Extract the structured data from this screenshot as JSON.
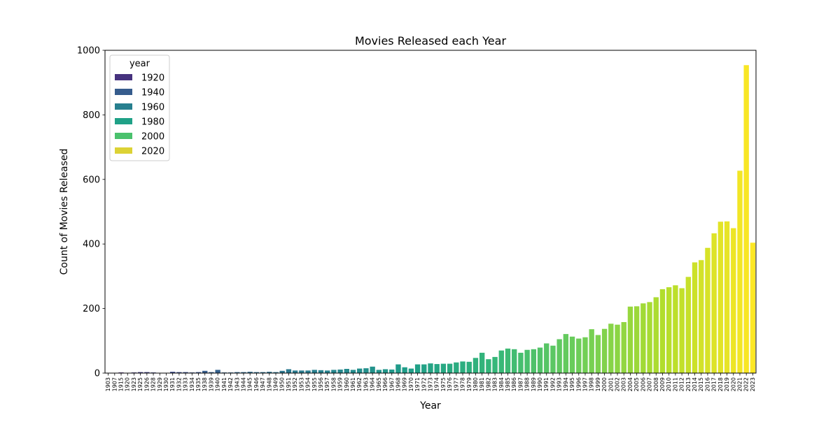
{
  "chart_data": {
    "type": "bar",
    "title": "Movies Released each Year",
    "xlabel": "Year",
    "ylabel": "Count of Movies Released",
    "ylim": [
      0,
      1000
    ],
    "yticks": [
      0,
      200,
      400,
      600,
      800,
      1000
    ],
    "grid": false,
    "legend": {
      "title": "year",
      "placement": "top-left",
      "entries": [
        {
          "label": "1920",
          "color": "#46327e"
        },
        {
          "label": "1940",
          "color": "#365c8d"
        },
        {
          "label": "1960",
          "color": "#277f8e"
        },
        {
          "label": "1980",
          "color": "#1fa187"
        },
        {
          "label": "2000",
          "color": "#4ac16d"
        },
        {
          "label": "2020",
          "color": "#dcd235"
        }
      ]
    },
    "colorscale": {
      "name": "viridis",
      "min_year": 1903,
      "max_year": 2023,
      "stops": [
        "#440154",
        "#482878",
        "#3e4989",
        "#31688e",
        "#26828e",
        "#1f9e89",
        "#35b779",
        "#6ece58",
        "#b5de2b",
        "#fde725"
      ]
    },
    "categories": [
      "1903",
      "1907",
      "1915",
      "1920",
      "1923",
      "1925",
      "1926",
      "1928",
      "1929",
      "1930",
      "1931",
      "1932",
      "1933",
      "1934",
      "1935",
      "1938",
      "1939",
      "1940",
      "1941",
      "1942",
      "1943",
      "1944",
      "1945",
      "1946",
      "1947",
      "1948",
      "1949",
      "1950",
      "1951",
      "1952",
      "1953",
      "1954",
      "1955",
      "1956",
      "1957",
      "1958",
      "1959",
      "1960",
      "1961",
      "1962",
      "1963",
      "1964",
      "1965",
      "1966",
      "1967",
      "1968",
      "1969",
      "1970",
      "1971",
      "1972",
      "1973",
      "1974",
      "1975",
      "1976",
      "1977",
      "1978",
      "1979",
      "1980",
      "1981",
      "1982",
      "1983",
      "1984",
      "1985",
      "1986",
      "1987",
      "1988",
      "1989",
      "1990",
      "1991",
      "1992",
      "1993",
      "1994",
      "1995",
      "1996",
      "1997",
      "1998",
      "1999",
      "2000",
      "2001",
      "2002",
      "2003",
      "2004",
      "2005",
      "2006",
      "2007",
      "2008",
      "2009",
      "2010",
      "2011",
      "2012",
      "2013",
      "2014",
      "2015",
      "2016",
      "2017",
      "2018",
      "2019",
      "2020",
      "2021",
      "2022",
      "2023"
    ],
    "values": [
      1,
      1,
      2,
      1,
      2,
      3,
      3,
      2,
      1,
      1,
      4,
      3,
      3,
      2,
      3,
      7,
      3,
      10,
      2,
      2,
      3,
      3,
      4,
      3,
      3,
      4,
      3,
      7,
      12,
      8,
      8,
      8,
      10,
      9,
      8,
      10,
      11,
      13,
      10,
      14,
      15,
      20,
      10,
      12,
      11,
      27,
      18,
      14,
      27,
      27,
      30,
      28,
      29,
      29,
      33,
      36,
      35,
      47,
      63,
      43,
      50,
      70,
      76,
      74,
      63,
      72,
      74,
      79,
      92,
      85,
      105,
      121,
      113,
      107,
      111,
      136,
      118,
      137,
      153,
      150,
      158,
      206,
      207,
      216,
      220,
      235,
      260,
      266,
      272,
      263,
      298,
      343,
      350,
      388,
      433,
      469,
      470,
      449,
      627,
      954,
      404
    ]
  }
}
